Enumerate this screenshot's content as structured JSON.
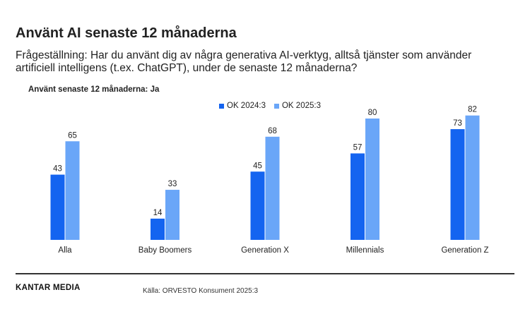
{
  "title": "Använt AI senaste 12 månaderna",
  "question": "Frågeställning: Har du använt dig av några generativa AI-verktyg, alltså tjänster som använder artificiell intelligens (t.ex. ChatGPT), under de senaste 12 månaderna?",
  "subtitle": "Använt senaste 12 månaderna: Ja",
  "footer": {
    "logo": "KANTAR MEDIA",
    "source": "Källa: ORVESTO Konsument 2025:3"
  },
  "colors": {
    "series1": "#1464f0",
    "series2": "#6aa6f8"
  },
  "chart_data": {
    "type": "bar",
    "title": "Använt senaste 12 månaderna: Ja",
    "categories": [
      "Alla",
      "Baby Boomers",
      "Generation X",
      "Millennials",
      "Generation Z"
    ],
    "series": [
      {
        "name": "OK 2024:3",
        "values": [
          43,
          14,
          45,
          57,
          73
        ]
      },
      {
        "name": "OK 2025:3",
        "values": [
          65,
          33,
          68,
          80,
          82
        ]
      }
    ],
    "xlabel": "",
    "ylabel": "",
    "ylim": [
      0,
      100
    ],
    "grid": false,
    "legend": "top-center"
  }
}
